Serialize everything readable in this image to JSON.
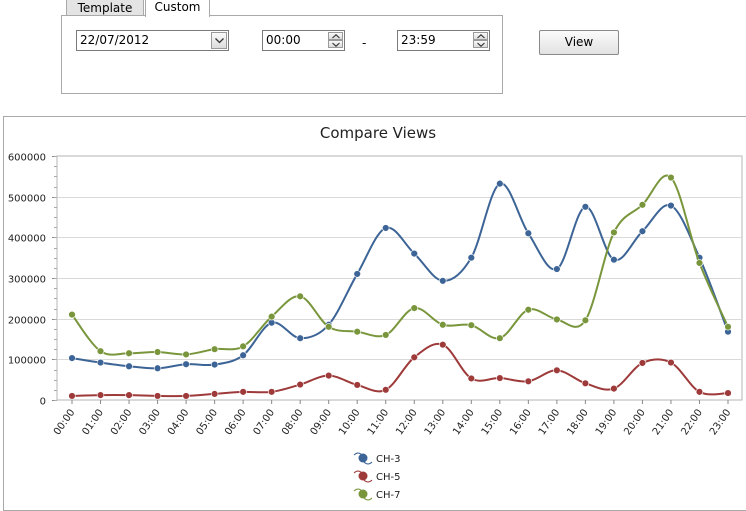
{
  "tabs": [
    {
      "label": "Template"
    },
    {
      "label": "Custom"
    }
  ],
  "filter": {
    "date": "22/07/2012",
    "start_time": "00:00",
    "separator": "-",
    "end_time": "23:59",
    "view_label": "View"
  },
  "chart_data": {
    "type": "line",
    "title": "Compare Views",
    "xlabel": "",
    "ylabel": "",
    "categories": [
      "00:00",
      "01:00",
      "02:00",
      "03:00",
      "04:00",
      "05:00",
      "06:00",
      "07:00",
      "08:00",
      "09:00",
      "10:00",
      "11:00",
      "12:00",
      "13:00",
      "14:00",
      "15:00",
      "16:00",
      "17:00",
      "18:00",
      "19:00",
      "20:00",
      "21:00",
      "22:00",
      "23:00"
    ],
    "ylim": [
      0,
      600000
    ],
    "yticks": [
      "0",
      "100000",
      "200000",
      "300000",
      "400000",
      "500000",
      "600000"
    ],
    "grid": true,
    "legend": "bottom-center",
    "series": [
      {
        "name": "CH-3",
        "color": "#3c6496",
        "values": [
          103000,
          92000,
          83000,
          78000,
          88000,
          87000,
          110000,
          190000,
          152000,
          185000,
          310000,
          423000,
          360000,
          293000,
          350000,
          532000,
          410000,
          322000,
          475000,
          345000,
          415000,
          478000,
          350000,
          168000
        ]
      },
      {
        "name": "CH-5",
        "color": "#9e3a3a",
        "values": [
          10000,
          12000,
          12000,
          10000,
          10000,
          15000,
          20000,
          20000,
          38000,
          60000,
          37000,
          25000,
          105000,
          136000,
          53000,
          54000,
          46000,
          73000,
          41000,
          28000,
          91000,
          92000,
          20000,
          17000
        ]
      },
      {
        "name": "CH-7",
        "color": "#79963c",
        "values": [
          210000,
          120000,
          115000,
          118000,
          112000,
          125000,
          132000,
          205000,
          255000,
          180000,
          168000,
          160000,
          226000,
          185000,
          184000,
          152000,
          222000,
          198000,
          196000,
          412000,
          480000,
          547000,
          337000,
          180000
        ]
      }
    ]
  }
}
